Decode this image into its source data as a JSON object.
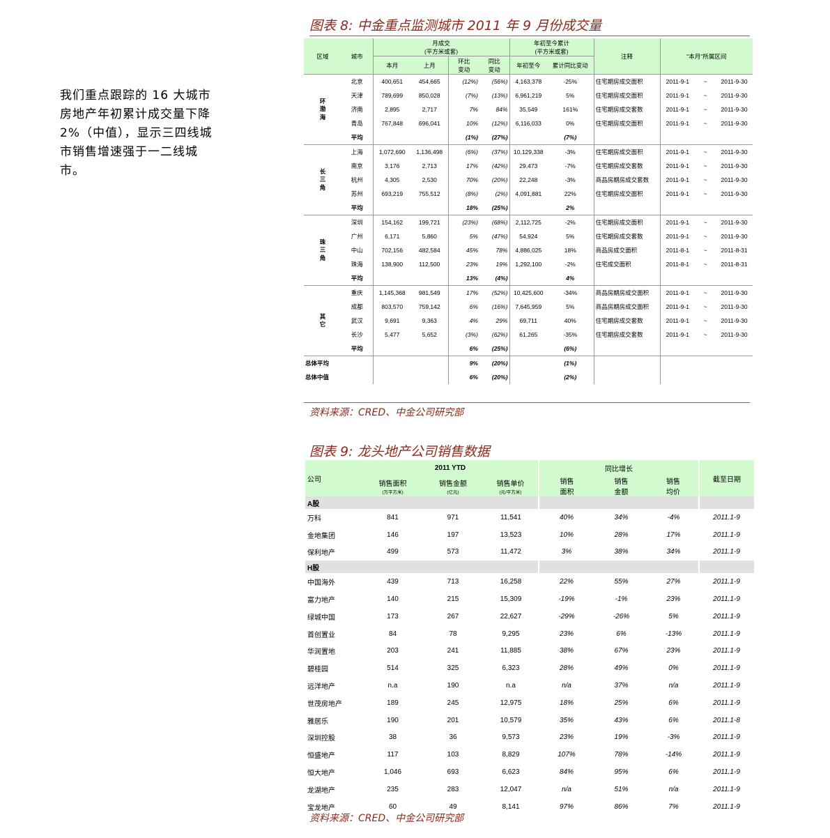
{
  "side_text": "我们重点跟踪的 16 大城市房地产年初累计成交量下降 2%（中值），显示三四线城市销售增速强于一二线城市。",
  "fig8": {
    "title": "图表 8:  中金重点监测城市 2011 年 9 月份成交量",
    "source": "资料来源：CRED、中金公司研究部",
    "headers": {
      "region": "区域",
      "city": "城市",
      "monthly": "月成交\n(平方米或套)",
      "ytd": "年初至今累计\n(平方米或套)",
      "note": "注释",
      "period": "\"本月\"所属区间",
      "this_month": "本月",
      "last_month": "上月",
      "mom": "环比\n变动",
      "yoy": "同比\n变动",
      "ytd_val": "年初至今",
      "ytd_chg": "累计同比变动"
    },
    "tilde": "~",
    "groups": [
      {
        "region": "环渤海",
        "rows": [
          [
            "北京",
            "400,651",
            "454,665",
            "(12%)",
            "(56%)",
            "4,163,378",
            "-25%",
            "住宅期房成交面积",
            "2011-9-1",
            "2011-9-30"
          ],
          [
            "天津",
            "789,699",
            "850,028",
            "(7%)",
            "(13%)",
            "6,961,219",
            "5%",
            "住宅期房成交面积",
            "2011-9-1",
            "2011-9-30"
          ],
          [
            "济南",
            "2,895",
            "2,717",
            "7%",
            "84%",
            "35,549",
            "161%",
            "住宅期房成交套数",
            "2011-9-1",
            "2011-9-30"
          ],
          [
            "青岛",
            "767,848",
            "696,041",
            "10%",
            "(12%)",
            "6,116,033",
            "0%",
            "住宅期房成交面积",
            "2011-9-1",
            "2011-9-30"
          ]
        ],
        "avg": [
          "平均",
          "(1%)",
          "(27%)",
          "(7%)"
        ]
      },
      {
        "region": "长三角",
        "rows": [
          [
            "上海",
            "1,072,690",
            "1,136,498",
            "(6%)",
            "(37%)",
            "10,129,338",
            "-3%",
            "住宅期房成交面积",
            "2011-9-1",
            "2011-9-30"
          ],
          [
            "南京",
            "3,176",
            "2,713",
            "17%",
            "(42%)",
            "29,473",
            "-7%",
            "住宅期房成交套数",
            "2011-9-1",
            "2011-9-30"
          ],
          [
            "杭州",
            "4,305",
            "2,530",
            "70%",
            "(20%)",
            "22,248",
            "-3%",
            "商品房期房成交套数",
            "2011-9-1",
            "2011-9-30"
          ],
          [
            "苏州",
            "693,219",
            "755,512",
            "(8%)",
            "(2%)",
            "4,091,881",
            "22%",
            "住宅期房成交面积",
            "2011-9-1",
            "2011-9-30"
          ]
        ],
        "avg": [
          "平均",
          "18%",
          "(25%)",
          "2%"
        ]
      },
      {
        "region": "珠三角",
        "rows": [
          [
            "深圳",
            "154,162",
            "199,721",
            "(23%)",
            "(68%)",
            "2,112,725",
            "-2%",
            "住宅期房成交面积",
            "2011-9-1",
            "2011-9-30"
          ],
          [
            "广州",
            "6,171",
            "5,860",
            "5%",
            "(47%)",
            "54,924",
            "5%",
            "住宅期房成交套数",
            "2011-9-1",
            "2011-9-30"
          ],
          [
            "中山",
            "702,156",
            "482,584",
            "45%",
            "78%",
            "4,886,025",
            "18%",
            "商品房成交面积",
            "2011-8-1",
            "2011-8-31"
          ],
          [
            "珠海",
            "138,900",
            "112,500",
            "23%",
            "19%",
            "1,292,100",
            "-2%",
            "住宅成交面积",
            "2011-8-1",
            "2011-8-31"
          ]
        ],
        "avg": [
          "平均",
          "13%",
          "(4%)",
          "4%"
        ]
      },
      {
        "region": "其它",
        "rows": [
          [
            "重庆",
            "1,145,368",
            "981,549",
            "17%",
            "(52%)",
            "10,425,600",
            "-34%",
            "商品房期房成交面积",
            "2011-9-1",
            "2011-9-30"
          ],
          [
            "成都",
            "803,570",
            "759,142",
            "6%",
            "(16%)",
            "7,645,959",
            "5%",
            "商品房期房成交面积",
            "2011-9-1",
            "2011-9-30"
          ],
          [
            "武汉",
            "9,691",
            "9,363",
            "4%",
            "29%",
            "69,711",
            "40%",
            "住宅期房成交套数",
            "2011-9-1",
            "2011-9-30"
          ],
          [
            "长沙",
            "5,477",
            "5,652",
            "(3%)",
            "(62%)",
            "61,265",
            "-35%",
            "住宅期房成交套数",
            "2011-9-1",
            "2011-9-30"
          ]
        ],
        "avg": [
          "平均",
          "6%",
          "(25%)",
          "(6%)"
        ]
      }
    ],
    "totals": [
      [
        "总体平均",
        "9%",
        "(20%)",
        "(1%)"
      ],
      [
        "总体中值",
        "6%",
        "(20%)",
        "(2%)"
      ]
    ]
  },
  "fig9": {
    "title": "图表 9:  龙头地产公司销售数据",
    "source": "资料来源：CRED、中金公司研究部",
    "headers": {
      "company": "公司",
      "ytd": "2011 YTD",
      "yoy": "同比增长",
      "date": "截至日期",
      "area": "销售面积",
      "area_unit": "(万平方米)",
      "amount": "销售金额",
      "amount_unit": "(亿元)",
      "price": "销售单价",
      "price_unit": "(元/平方米)",
      "g_area": "销售\n面积",
      "g_amount": "销售\n金额",
      "g_price": "销售\n均价"
    },
    "sections": [
      {
        "name": "A股",
        "rows": [
          [
            "万科",
            "841",
            "971",
            "11,541",
            "40%",
            "34%",
            "-4%",
            "2011.1-9"
          ],
          [
            "金地集团",
            "146",
            "197",
            "13,523",
            "10%",
            "28%",
            "17%",
            "2011.1-9"
          ],
          [
            "保利地产",
            "499",
            "573",
            "11,472",
            "3%",
            "38%",
            "34%",
            "2011.1-9"
          ]
        ]
      },
      {
        "name": "H股",
        "rows": [
          [
            "中国海外",
            "439",
            "713",
            "16,258",
            "22%",
            "55%",
            "27%",
            "2011.1-9"
          ],
          [
            "富力地产",
            "140",
            "215",
            "15,309",
            "-19%",
            "-1%",
            "23%",
            "2011.1-9"
          ],
          [
            "绿城中国",
            "173",
            "267",
            "22,627",
            "-29%",
            "-26%",
            "5%",
            "2011.1-9"
          ],
          [
            "首创置业",
            "84",
            "78",
            "9,295",
            "23%",
            "6%",
            "-13%",
            "2011.1-9"
          ],
          [
            "华润置地",
            "203",
            "241",
            "11,885",
            "38%",
            "67%",
            "23%",
            "2011.1-9"
          ],
          [
            "碧桂园",
            "514",
            "325",
            "6,323",
            "28%",
            "49%",
            "0%",
            "2011.1-9"
          ],
          [
            "远洋地产",
            "n.a",
            "190",
            "n.a",
            "n/a",
            "37%",
            "n/a",
            "2011.1-9"
          ],
          [
            "世茂房地产",
            "189",
            "245",
            "12,975",
            "18%",
            "25%",
            "6%",
            "2011.1-9"
          ],
          [
            "雅居乐",
            "190",
            "201",
            "10,579",
            "35%",
            "43%",
            "6%",
            "2011.1-8"
          ],
          [
            "深圳控股",
            "38",
            "36",
            "9,573",
            "23%",
            "19%",
            "-3%",
            "2011.1-9"
          ],
          [
            "恒盛地产",
            "117",
            "103",
            "8,829",
            "107%",
            "78%",
            "-14%",
            "2011.1-9"
          ],
          [
            "恒大地产",
            "1,046",
            "693",
            "6,623",
            "84%",
            "95%",
            "6%",
            "2011.1-9"
          ],
          [
            "龙湖地产",
            "235",
            "283",
            "12,047",
            "n/a",
            "51%",
            "n/a",
            "2011.1-9"
          ],
          [
            "宝龙地产",
            "60",
            "49",
            "8,141",
            "97%",
            "86%",
            "7%",
            "2011.1-9"
          ]
        ]
      }
    ]
  }
}
